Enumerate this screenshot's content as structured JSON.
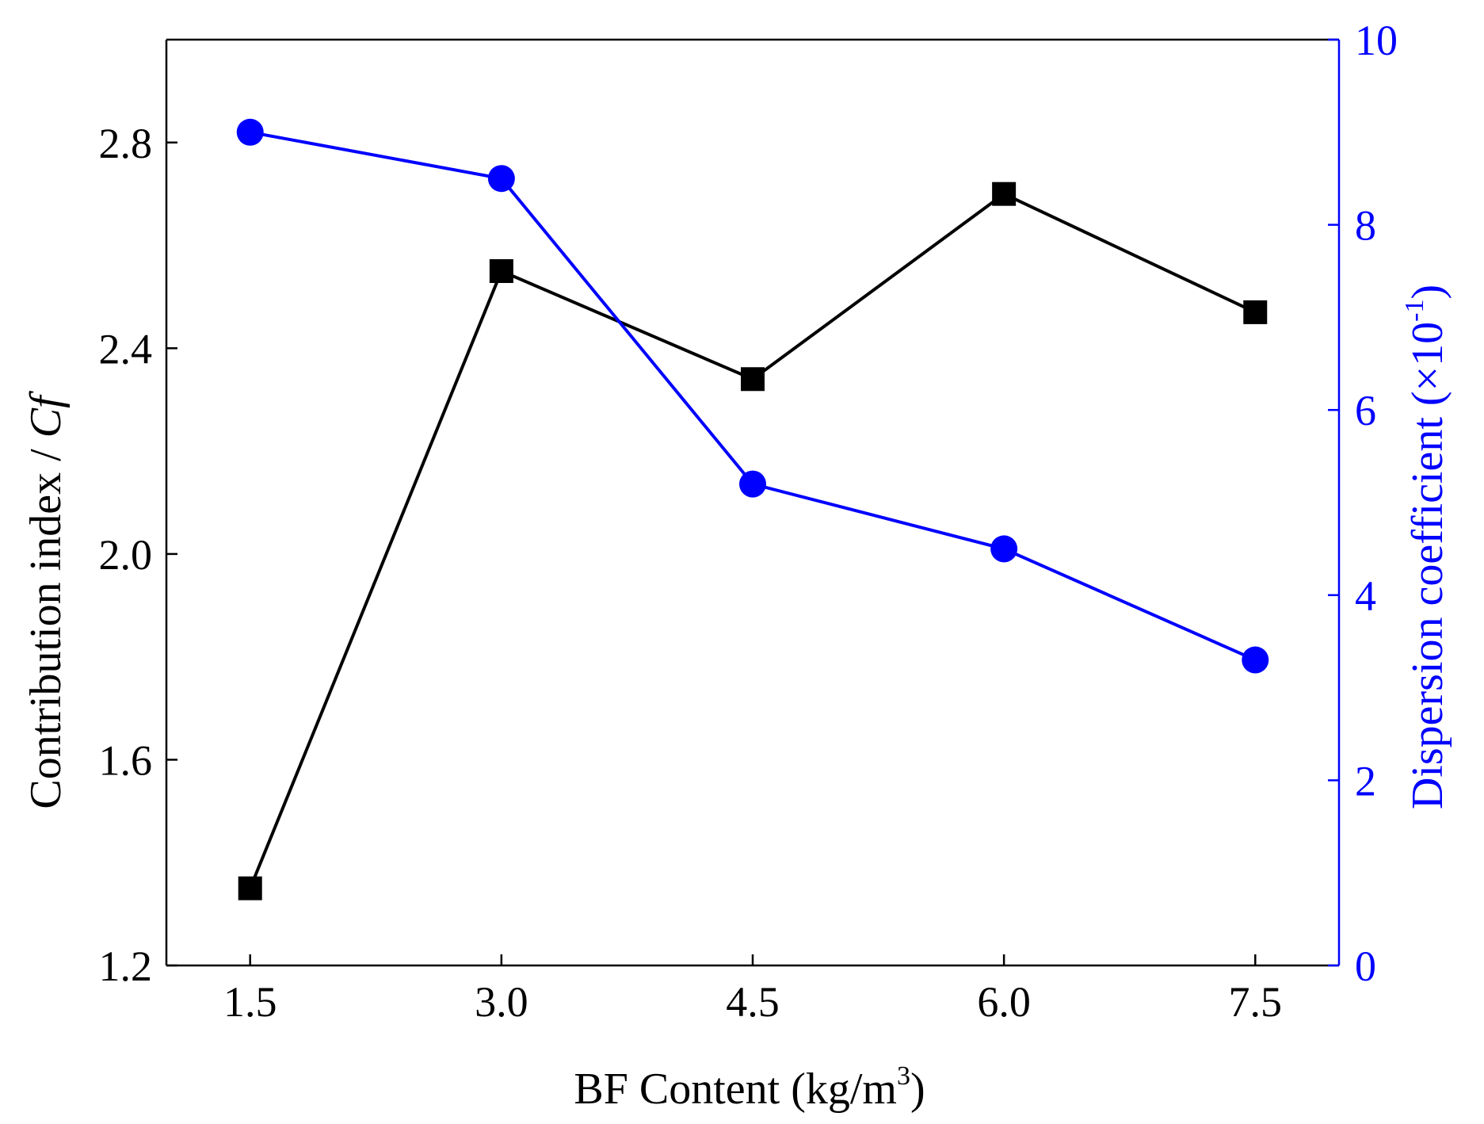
{
  "chart_data": {
    "type": "line",
    "xlabel": "BF Content (kg/m",
    "xlabel_sup": "3",
    "xlabel_close": ")",
    "x": [
      1.5,
      3.0,
      4.5,
      6.0,
      7.5
    ],
    "xticks": [
      "1.5",
      "3.0",
      "4.5",
      "6.0",
      "7.5"
    ],
    "xlim": [
      1.0,
      8.0
    ],
    "y_left": {
      "label": "Contribution index / ",
      "label_italic": "Cf",
      "ticks": [
        "1.2",
        "1.6",
        "2.0",
        "2.4",
        "2.8"
      ],
      "tick_values": [
        1.2,
        1.6,
        2.0,
        2.4,
        2.8
      ],
      "ylim": [
        1.2,
        3.0
      ],
      "color": "#000000"
    },
    "y_right": {
      "label": "Dispersion coefficient (×10",
      "label_sup": "-1",
      "label_close": ")",
      "ticks": [
        "0",
        "2",
        "4",
        "6",
        "8",
        "10"
      ],
      "tick_values": [
        0,
        2,
        4,
        6,
        8,
        10
      ],
      "ylim": [
        0,
        10
      ],
      "color": "#0000ff"
    },
    "series": [
      {
        "axis": "left",
        "marker": "square",
        "color": "#000000",
        "values": [
          1.35,
          2.55,
          2.34,
          2.7,
          2.47
        ]
      },
      {
        "axis": "right",
        "marker": "circle",
        "color": "#0000ff",
        "values": [
          9.0,
          8.5,
          5.2,
          4.5,
          3.3
        ]
      }
    ],
    "grid": false
  }
}
